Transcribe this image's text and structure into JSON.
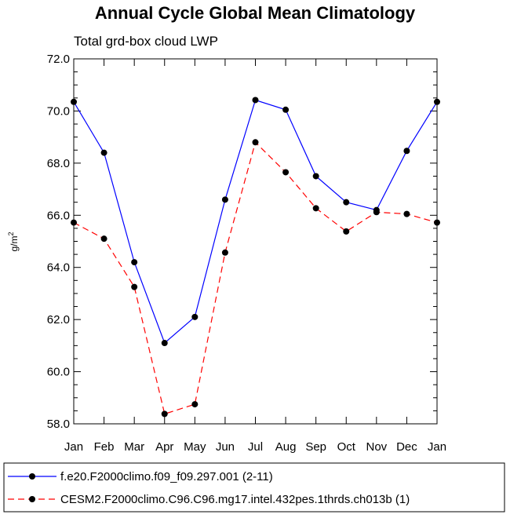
{
  "chart_data": {
    "type": "line",
    "title": "Annual Cycle Global Mean Climatology",
    "subtitle": "Total grd-box cloud LWP",
    "ylabel": "g/m",
    "ylabel_sup": "2",
    "xlabel": "",
    "ylim": [
      58.0,
      72.0
    ],
    "yticks": [
      "58.0",
      "60.0",
      "62.0",
      "64.0",
      "66.0",
      "68.0",
      "70.0",
      "72.0"
    ],
    "categories": [
      "Jan",
      "Feb",
      "Mar",
      "Apr",
      "May",
      "Jun",
      "Jul",
      "Aug",
      "Sep",
      "Oct",
      "Nov",
      "Dec",
      "Jan"
    ],
    "series": [
      {
        "name": "f.e20.F2000climo.f09_f09.297.001 (2-11)",
        "color": "#0000ff",
        "dash": "solid",
        "values": [
          70.35,
          68.4,
          64.2,
          61.1,
          62.1,
          66.6,
          70.42,
          70.05,
          67.5,
          66.5,
          66.2,
          68.47,
          70.35
        ]
      },
      {
        "name": "CESM2.F2000climo.C96.C96.mg17.intel.432pes.1thrds.ch013b (1)",
        "color": "#ff0000",
        "dash": "dashed",
        "values": [
          65.72,
          65.1,
          63.25,
          58.38,
          58.75,
          64.57,
          68.8,
          67.65,
          66.27,
          65.38,
          66.12,
          66.05,
          65.72
        ]
      }
    ],
    "legend_position": "bottom"
  }
}
